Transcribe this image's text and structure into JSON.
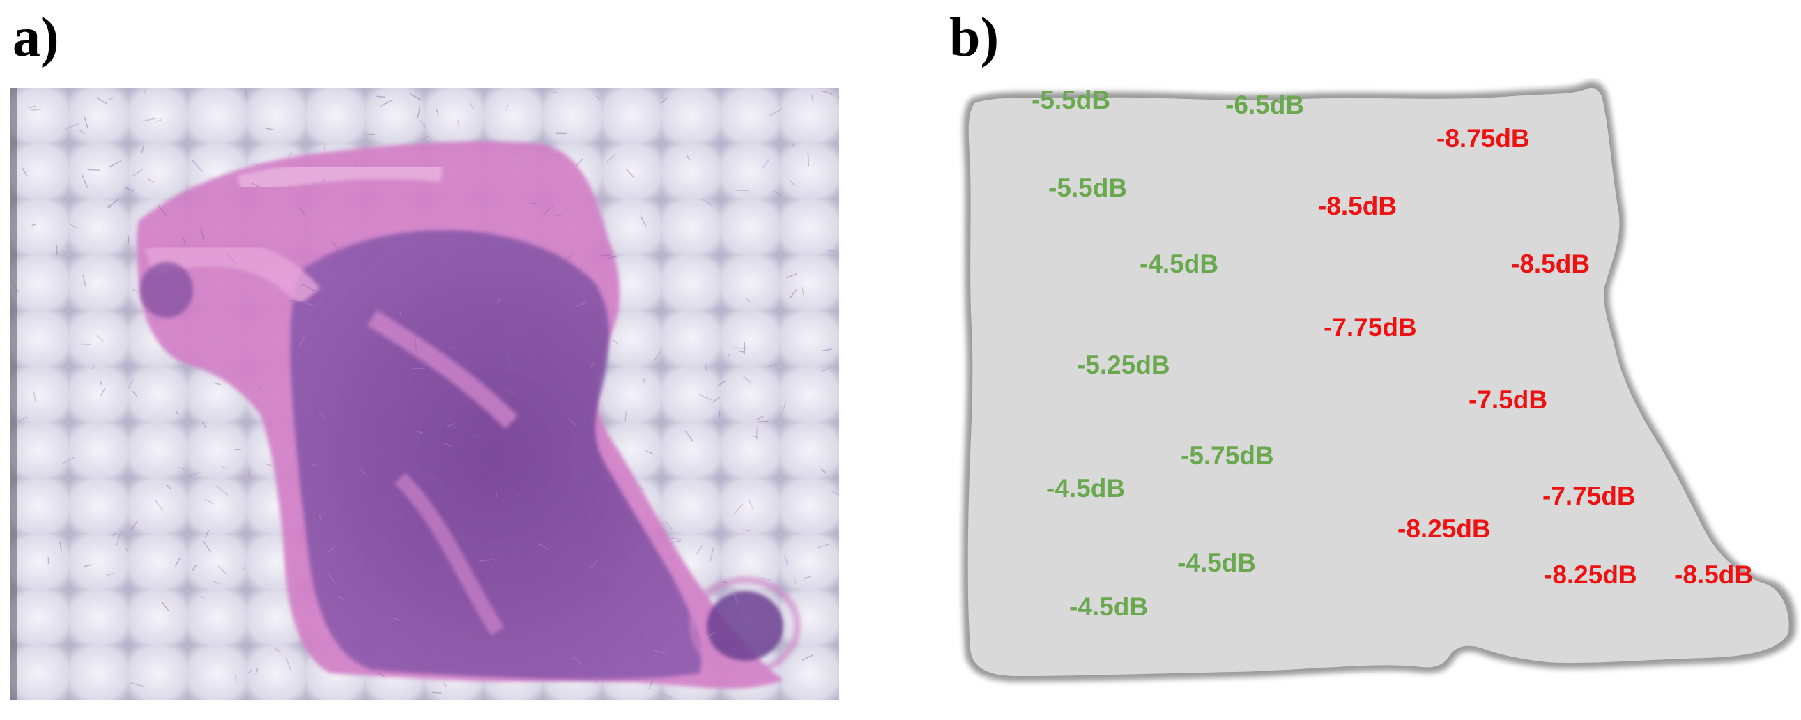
{
  "figure": {
    "panel_a_label": "a)",
    "panel_b_label": "b)"
  },
  "colors": {
    "green": "#6aa84f",
    "red": "#ee1111",
    "tissue_gray": "#d9d9d9",
    "outline_gray": "#9a9a9a",
    "stain_pink": "#d278c8",
    "stain_purple": "#7a4e9a",
    "background_tile": "#e4e3ee"
  },
  "map_labels": [
    {
      "text": "-5.5dB",
      "color": "green"
    },
    {
      "text": "-6.5dB",
      "color": "green"
    },
    {
      "text": "-8.75dB",
      "color": "red"
    },
    {
      "text": "-5.5dB",
      "color": "green"
    },
    {
      "text": "-8.5dB",
      "color": "red"
    },
    {
      "text": "-4.5dB",
      "color": "green"
    },
    {
      "text": "-8.5dB",
      "color": "red"
    },
    {
      "text": "-7.75dB",
      "color": "red"
    },
    {
      "text": "-5.25dB",
      "color": "green"
    },
    {
      "text": "-7.5dB",
      "color": "red"
    },
    {
      "text": "-5.75dB",
      "color": "green"
    },
    {
      "text": "-4.5dB",
      "color": "green"
    },
    {
      "text": "-7.75dB",
      "color": "red"
    },
    {
      "text": "-8.25dB",
      "color": "red"
    },
    {
      "text": "-4.5dB",
      "color": "green"
    },
    {
      "text": "-8.25dB",
      "color": "red"
    },
    {
      "text": "-8.5dB",
      "color": "red"
    },
    {
      "text": "-4.5dB",
      "color": "green"
    }
  ]
}
